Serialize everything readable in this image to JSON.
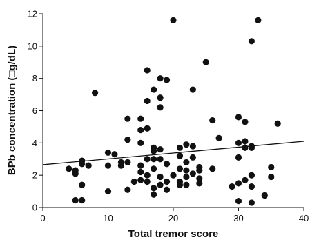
{
  "chart_data": {
    "type": "scatter",
    "title": "",
    "xlabel": "Total tremor score",
    "ylabel": "BPb concentration (□g/dL)",
    "xlim": [
      0,
      40
    ],
    "ylim": [
      0,
      12
    ],
    "xticks": [
      "0",
      "10",
      "20",
      "30",
      "40"
    ],
    "yticks": [
      "0",
      "2",
      "4",
      "6",
      "8",
      "10",
      "12"
    ],
    "grid": false,
    "trendline": {
      "x": [
        0,
        40
      ],
      "y": [
        2.65,
        4.1
      ]
    },
    "points": [
      [
        4,
        2.4
      ],
      [
        5,
        2.1
      ],
      [
        5,
        2.3
      ],
      [
        5,
        0.45
      ],
      [
        6,
        2.9
      ],
      [
        6,
        2.7
      ],
      [
        6,
        1.4
      ],
      [
        6,
        0.45
      ],
      [
        7,
        2.6
      ],
      [
        8,
        7.1
      ],
      [
        10,
        3.4
      ],
      [
        10,
        2.6
      ],
      [
        10,
        1.0
      ],
      [
        11,
        3.3
      ],
      [
        12,
        2.8
      ],
      [
        12,
        2.6
      ],
      [
        13,
        5.5
      ],
      [
        13,
        4.2
      ],
      [
        13,
        2.8
      ],
      [
        13,
        1.1
      ],
      [
        14,
        1.6
      ],
      [
        15,
        5.5
      ],
      [
        15,
        4.8
      ],
      [
        15,
        4.0
      ],
      [
        15,
        2.6
      ],
      [
        15,
        2.2
      ],
      [
        15,
        1.7
      ],
      [
        16,
        8.5
      ],
      [
        16,
        6.6
      ],
      [
        16,
        4.9
      ],
      [
        16,
        3.0
      ],
      [
        16,
        2.0
      ],
      [
        16,
        1.6
      ],
      [
        17,
        7.3
      ],
      [
        17,
        3.7
      ],
      [
        17,
        3.5
      ],
      [
        17,
        3.0
      ],
      [
        17,
        2.4
      ],
      [
        17,
        1.2
      ],
      [
        17,
        0.8
      ],
      [
        18,
        8.0
      ],
      [
        18,
        6.8
      ],
      [
        18,
        6.2
      ],
      [
        18,
        3.6
      ],
      [
        18,
        3.0
      ],
      [
        18,
        1.9
      ],
      [
        18,
        1.4
      ],
      [
        19,
        7.9
      ],
      [
        19,
        2.7
      ],
      [
        19,
        1.6
      ],
      [
        19,
        1.1
      ],
      [
        20,
        11.6
      ],
      [
        20,
        2.0
      ],
      [
        21,
        3.7
      ],
      [
        21,
        3.2
      ],
      [
        21,
        2.4
      ],
      [
        21,
        1.6
      ],
      [
        21,
        1.4
      ],
      [
        22,
        3.9
      ],
      [
        22,
        2.8
      ],
      [
        22,
        2.3
      ],
      [
        22,
        1.9
      ],
      [
        22,
        1.4
      ],
      [
        23,
        7.3
      ],
      [
        23,
        3.8
      ],
      [
        23,
        3.1
      ],
      [
        23,
        2.1
      ],
      [
        24,
        2.5
      ],
      [
        24,
        2.3
      ],
      [
        24,
        1.8
      ],
      [
        24,
        1.5
      ],
      [
        25,
        9.0
      ],
      [
        26,
        5.4
      ],
      [
        26,
        2.4
      ],
      [
        27,
        4.3
      ],
      [
        29,
        1.3
      ],
      [
        30,
        5.6
      ],
      [
        30,
        4.0
      ],
      [
        30,
        3.1
      ],
      [
        30,
        1.5
      ],
      [
        30,
        0.4
      ],
      [
        31,
        5.3
      ],
      [
        31,
        4.1
      ],
      [
        31,
        3.7
      ],
      [
        31,
        1.7
      ],
      [
        32,
        10.3
      ],
      [
        32,
        3.8
      ],
      [
        32,
        3.7
      ],
      [
        32,
        2.0
      ],
      [
        32,
        1.3
      ],
      [
        32,
        0.3
      ],
      [
        33,
        11.6
      ],
      [
        34,
        0.75
      ],
      [
        35,
        2.5
      ],
      [
        35,
        1.9
      ],
      [
        36,
        5.2
      ]
    ]
  }
}
